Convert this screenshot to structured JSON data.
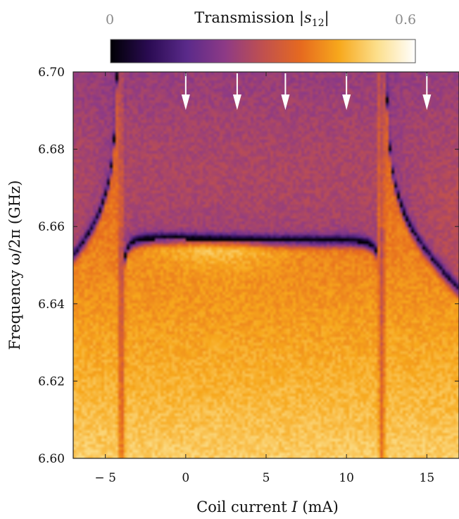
{
  "chart_data": {
    "type": "heatmap",
    "title": "",
    "colorbar": {
      "label": "Transmission |s12|",
      "label_main": "Transmission ",
      "label_sub": "12",
      "min_label": "0",
      "max_label": "0.6",
      "range": [
        0,
        0.6
      ],
      "colormap": [
        "#000004",
        "#2a0b52",
        "#5a2a8a",
        "#8d3a86",
        "#c0504f",
        "#e66a1f",
        "#f7a81c",
        "#fcdf8c",
        "#ffffff"
      ]
    },
    "xlabel": "Coil current I (mA)",
    "xlabel_main": "Coil current ",
    "xlabel_var": "I",
    "xlabel_unit": " (mA)",
    "ylabel": "Frequency ω/2π (GHz)",
    "xlim": [
      -7,
      17
    ],
    "ylim": [
      6.6,
      6.7
    ],
    "xticks": [
      {
        "value": -5,
        "label": "− 5"
      },
      {
        "value": 0,
        "label": "0"
      },
      {
        "value": 5,
        "label": "5"
      },
      {
        "value": 10,
        "label": "10"
      },
      {
        "value": 15,
        "label": "15"
      }
    ],
    "yticks": [
      {
        "value": 6.6,
        "label": "6.60"
      },
      {
        "value": 6.62,
        "label": "6.62"
      },
      {
        "value": 6.64,
        "label": "6.64"
      },
      {
        "value": 6.66,
        "label": "6.66"
      },
      {
        "value": 6.68,
        "label": "6.68"
      },
      {
        "value": 6.7,
        "label": "6.70"
      }
    ],
    "arrows_x": [
      0,
      3.2,
      6.2,
      10,
      15
    ],
    "features": {
      "background_transmission": 0.3,
      "lower_band_transmission": 0.38,
      "upper_region_transmission": 0.22,
      "hybrid_mode_frequency_center_GHz": 6.657,
      "vertical_anticrossings_mA": [
        -4.0,
        12.2
      ],
      "flat_branch_current_range_mA": [
        -3.6,
        11.8
      ]
    }
  }
}
